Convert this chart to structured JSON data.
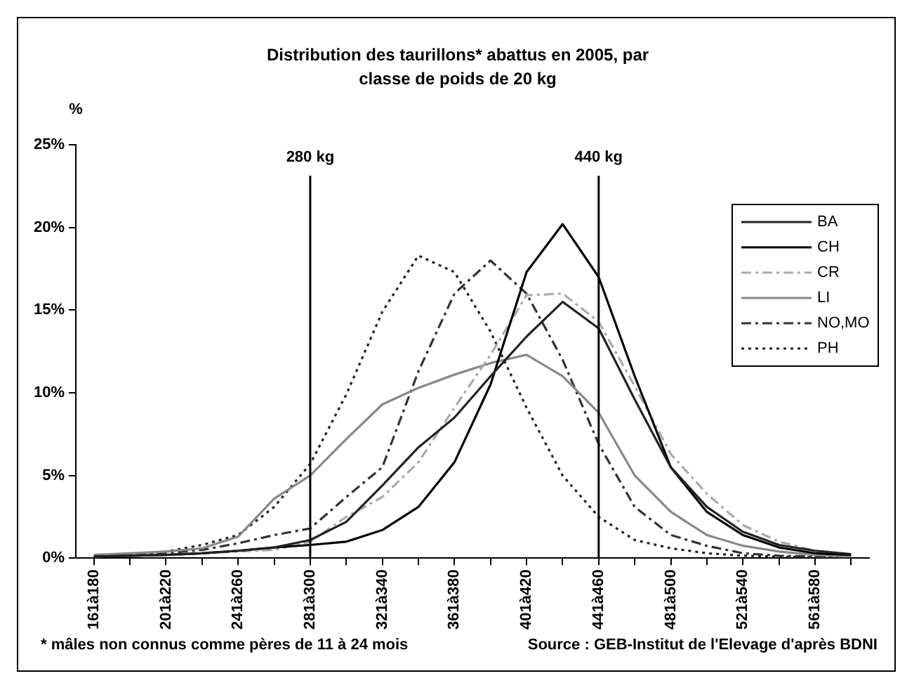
{
  "chart_data": {
    "type": "line",
    "title": "Distribution des taurillons* abattus en 2005, par classe de poids de 20 kg",
    "ylabel": "%",
    "categories": [
      "161à180",
      null,
      "201à220",
      null,
      "241à260",
      null,
      "281à300",
      null,
      "321à340",
      null,
      "361à380",
      null,
      "401à420",
      null,
      "441à460",
      null,
      "481à500",
      null,
      "521à540",
      null,
      "561à580",
      null
    ],
    "series": [
      {
        "name": "BA",
        "color": "#222222",
        "line_style": "solid",
        "values": [
          0.1,
          0.15,
          0.2,
          0.3,
          0.45,
          0.65,
          1.1,
          2.2,
          4.4,
          6.7,
          8.5,
          11.0,
          13.4,
          15.5,
          13.9,
          9.6,
          5.5,
          3.1,
          1.6,
          0.8,
          0.45,
          0.25
        ]
      },
      {
        "name": "CH",
        "color": "#000000",
        "line_style": "solid",
        "values": [
          0.1,
          0.15,
          0.2,
          0.3,
          0.45,
          0.65,
          0.8,
          1.0,
          1.7,
          3.1,
          5.8,
          10.5,
          17.3,
          20.2,
          17.0,
          11.0,
          5.5,
          2.8,
          1.4,
          0.65,
          0.3,
          0.2
        ]
      },
      {
        "name": "CR",
        "color": "#aaaaaa",
        "line_style": "dashed",
        "values": [
          0.1,
          0.15,
          0.2,
          0.3,
          0.4,
          0.5,
          1.0,
          2.5,
          3.7,
          5.8,
          9.1,
          12.3,
          15.9,
          16.0,
          14.3,
          10.4,
          6.3,
          3.9,
          2.0,
          1.0,
          0.45,
          0.2
        ]
      },
      {
        "name": "LI",
        "color": "#888888",
        "line_style": "solid",
        "values": [
          0.2,
          0.3,
          0.4,
          0.6,
          1.3,
          3.6,
          5.0,
          7.2,
          9.3,
          10.3,
          11.1,
          11.8,
          12.3,
          11.0,
          8.8,
          5.0,
          2.8,
          1.4,
          0.75,
          0.4,
          0.2,
          0.1
        ]
      },
      {
        "name": "NO,MO",
        "color": "#333333",
        "line_style": "dashed",
        "values": [
          0.1,
          0.2,
          0.3,
          0.5,
          0.9,
          1.4,
          1.8,
          3.7,
          5.5,
          11.3,
          16.0,
          18.0,
          16.0,
          12.0,
          6.9,
          3.1,
          1.4,
          0.75,
          0.3,
          0.15,
          0.1,
          0.05
        ]
      },
      {
        "name": "PH",
        "color": "#222222",
        "line_style": "dotted",
        "values": [
          0.1,
          0.2,
          0.4,
          0.8,
          1.4,
          3.1,
          5.7,
          9.9,
          14.9,
          18.3,
          17.3,
          13.7,
          9.1,
          5.0,
          2.5,
          1.1,
          0.6,
          0.3,
          0.15,
          0.1,
          0.05,
          0.05
        ]
      }
    ],
    "ylim": [
      0,
      25
    ],
    "yticks": [
      {
        "value": 0,
        "label": "0%"
      },
      {
        "value": 5,
        "label": "5%"
      },
      {
        "value": 10,
        "label": "10%"
      },
      {
        "value": 15,
        "label": "15%"
      },
      {
        "value": 20,
        "label": "20%"
      },
      {
        "value": 25,
        "label": "25%"
      }
    ],
    "ref_lines": [
      {
        "axis": "x",
        "value": "281à300",
        "label": "280 kg",
        "color": "#000000"
      },
      {
        "axis": "x",
        "value": "441à460",
        "label": "440 kg",
        "color": "#000000"
      }
    ],
    "grid": false,
    "legend": "top right",
    "marker": "none",
    "annotations": [
      "* mâles non connus comme pères de 11 à 24 mois",
      "Source : GEB-Institut de l'Elevage d'après BDNI"
    ]
  }
}
